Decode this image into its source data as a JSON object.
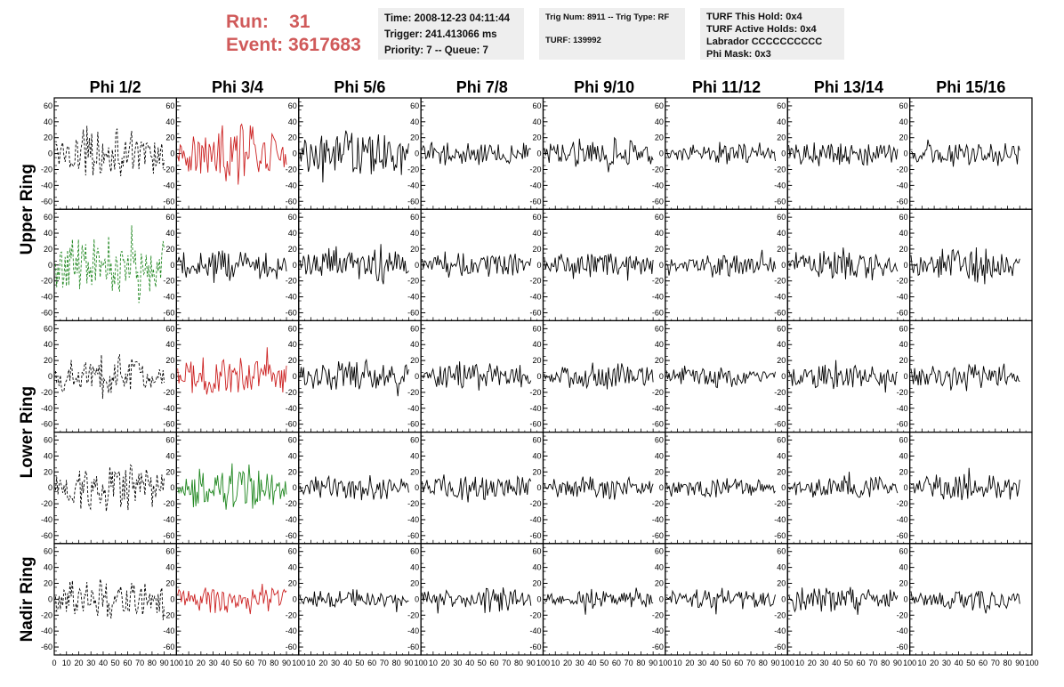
{
  "header": {
    "run_label": "Run:",
    "run_value": "31",
    "event_label": "Event:",
    "event_value": "3617683"
  },
  "info_box_1": {
    "line1": "Time: 2008-12-23 04:11:44",
    "line2": "Trigger: 241.413066 ms",
    "line3": "Priority: 7 -- Queue: 7"
  },
  "info_box_2": {
    "line1": "Trig Num: 8911 -- Trig Type: RF",
    "line2": "TURF: 139992"
  },
  "info_box_3": {
    "line1": "TURF This Hold: 0x4",
    "line2": "TURF Active Holds: 0x4",
    "line3": "Labrador CCCCCCCCCC",
    "line4": "Phi Mask: 0x3"
  },
  "chart_data": {
    "type": "line",
    "columns": [
      "Phi 1/2",
      "Phi 3/4",
      "Phi 5/6",
      "Phi 7/8",
      "Phi 9/10",
      "Phi 11/12",
      "Phi 13/14",
      "Phi 15/16"
    ],
    "rows": [
      "Upper Ring",
      "Upper Ring",
      "Lower Ring",
      "Lower Ring",
      "Nadir Ring"
    ],
    "row_labels": [
      {
        "label": "Upper Ring",
        "spans_rows": [
          0,
          1
        ]
      },
      {
        "label": "Lower Ring",
        "spans_rows": [
          2,
          3
        ]
      },
      {
        "label": "Nadir Ring",
        "spans_rows": [
          4
        ]
      }
    ],
    "xlim": [
      0,
      100
    ],
    "ylim": [
      -70,
      70
    ],
    "x_ticks": [
      0,
      10,
      20,
      30,
      40,
      50,
      60,
      70,
      80,
      90,
      100
    ],
    "y_ticks": [
      -60,
      -40,
      -20,
      0,
      20,
      40,
      60
    ],
    "samples_per_trace": 90,
    "colors": {
      "default": "#000000",
      "red": "#cc2222",
      "green": "#228822"
    },
    "panel_styles": [
      [
        "dashed-black",
        "red",
        "solid-black",
        "solid-black",
        "solid-black",
        "solid-black",
        "solid-black",
        "solid-black"
      ],
      [
        "dashed-green",
        "solid-black",
        "solid-black",
        "solid-black",
        "solid-black",
        "solid-black",
        "solid-black",
        "solid-black"
      ],
      [
        "dashed-black",
        "red",
        "solid-black",
        "solid-black",
        "solid-black",
        "solid-black",
        "solid-black",
        "solid-black"
      ],
      [
        "dashed-black",
        "green",
        "solid-black",
        "solid-black",
        "solid-black",
        "solid-black",
        "solid-black",
        "solid-black"
      ],
      [
        "dashed-black",
        "red",
        "solid-black",
        "solid-black",
        "solid-black",
        "solid-black",
        "solid-black",
        "solid-black"
      ]
    ],
    "amplitudes": [
      [
        25,
        30,
        25,
        15,
        18,
        10,
        15,
        15
      ],
      [
        35,
        18,
        18,
        15,
        15,
        12,
        15,
        18
      ],
      [
        22,
        22,
        18,
        15,
        15,
        12,
        15,
        14
      ],
      [
        25,
        28,
        14,
        15,
        12,
        10,
        12,
        15
      ],
      [
        25,
        18,
        10,
        14,
        10,
        12,
        14,
        12
      ]
    ]
  }
}
